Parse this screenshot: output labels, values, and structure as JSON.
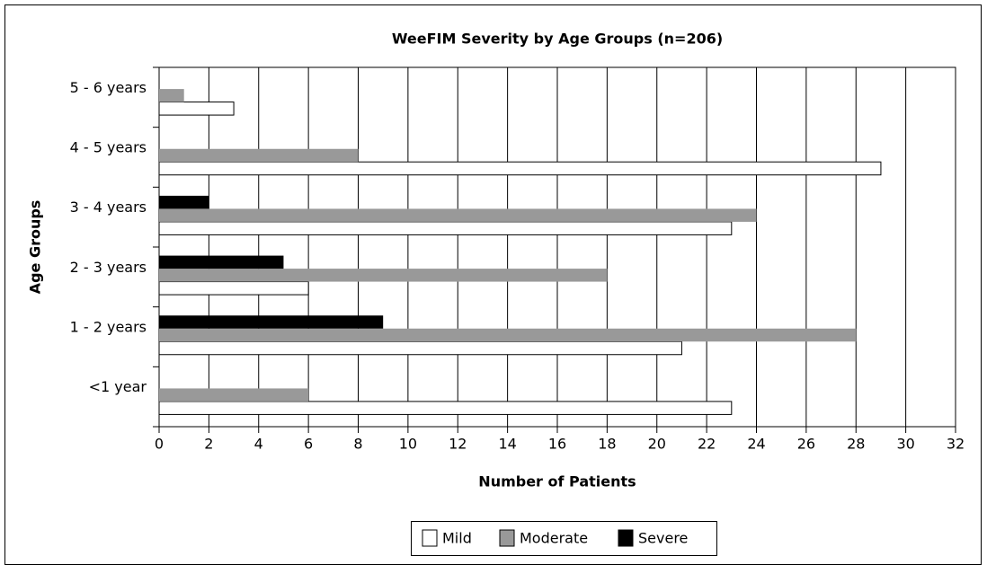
{
  "chart_data": {
    "type": "hbar",
    "title": "WeeFIM Severity by Age Groups (n=206)",
    "x_label": "Number of Patients",
    "y_label": "Age Groups",
    "categories": [
      "<1 year",
      "1 - 2 years",
      "2 - 3 years",
      "3 - 4 years",
      "4 - 5 years",
      "5 - 6 years"
    ],
    "series": [
      {
        "name": "Mild",
        "color": "#ffffff",
        "values": [
          23,
          21,
          6,
          23,
          29,
          3
        ]
      },
      {
        "name": "Moderate",
        "color": "#999999",
        "values": [
          6,
          28,
          18,
          24,
          8,
          1
        ]
      },
      {
        "name": "Severe",
        "color": "#000000",
        "values": [
          0,
          9,
          5,
          2,
          0,
          0
        ]
      }
    ],
    "xlim": [
      0,
      32
    ],
    "xticks": [
      0,
      2,
      4,
      6,
      8,
      10,
      12,
      14,
      16,
      18,
      20,
      22,
      24,
      26,
      28,
      30,
      32
    ],
    "grid": true,
    "legend": "bottom"
  }
}
